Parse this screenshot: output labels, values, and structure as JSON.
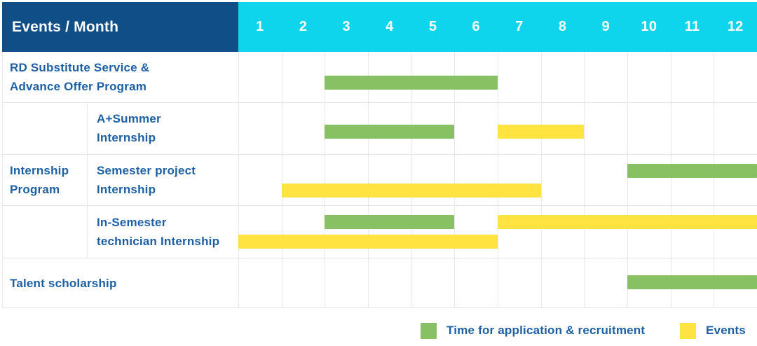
{
  "colors": {
    "corner_bg": "#0F4E87",
    "months_bg": "#0ED4EC",
    "application_green": "#87C163",
    "event_yellow": "#FFE340",
    "label_text": "#1C5FA5",
    "header_text": "#FFFFFF"
  },
  "table": {
    "corner_label": "Events / Month",
    "months": [
      "1",
      "2",
      "3",
      "4",
      "5",
      "6",
      "7",
      "8",
      "9",
      "10",
      "11",
      "12"
    ],
    "group_label_lines": [
      "Internship",
      "Program"
    ],
    "rows": [
      {
        "id": "rd-substitute-service",
        "label_lines": [
          "RD Substitute Service &",
          "Advance Offer Program"
        ],
        "in_group": false,
        "bars": [
          {
            "type": "application",
            "start": 3,
            "end": 6,
            "lane": "single"
          }
        ]
      },
      {
        "id": "a-plus-summer-internship",
        "label_lines": [
          "A+Summer",
          "Internship"
        ],
        "in_group": true,
        "bars": [
          {
            "type": "application",
            "start": 3,
            "end": 5,
            "lane": "single"
          },
          {
            "type": "event",
            "start": 7,
            "end": 8,
            "lane": "single"
          }
        ]
      },
      {
        "id": "semester-project-internship",
        "label_lines": [
          "Semester project",
          "Internship"
        ],
        "in_group": true,
        "bars": [
          {
            "type": "application",
            "start": 10,
            "end": 12,
            "lane": "upper"
          },
          {
            "type": "event",
            "start": 2,
            "end": 7,
            "lane": "lower"
          }
        ]
      },
      {
        "id": "in-semester-technician-internship",
        "label_lines": [
          "In-Semester",
          "technician Internship"
        ],
        "in_group": true,
        "bars": [
          {
            "type": "application",
            "start": 3,
            "end": 5,
            "lane": "upper"
          },
          {
            "type": "event",
            "start": 7,
            "end": 12,
            "lane": "upper"
          },
          {
            "type": "event",
            "start": 1,
            "end": 6,
            "lane": "lower"
          }
        ]
      },
      {
        "id": "talent-scholarship",
        "label_lines": [
          "Talent scholarship"
        ],
        "in_group": false,
        "bars": [
          {
            "type": "application",
            "start": 10,
            "end": 12,
            "lane": "single"
          }
        ]
      }
    ]
  },
  "legend": [
    {
      "type": "application",
      "label": "Time for application & recruitment"
    },
    {
      "type": "event",
      "label": "Events"
    }
  ],
  "chart_data": {
    "type": "bar",
    "subtype": "gantt",
    "title": "Events / Month",
    "x_axis": {
      "label": "Month",
      "ticks": [
        1,
        2,
        3,
        4,
        5,
        6,
        7,
        8,
        9,
        10,
        11,
        12
      ],
      "range": [
        1,
        12
      ]
    },
    "legend_entries": [
      "Time for application & recruitment",
      "Events"
    ],
    "grid": true,
    "tasks": [
      {
        "event": "RD Substitute Service & Advance Offer Program",
        "group": null,
        "application_recruitment_months": [
          [
            3,
            6
          ]
        ],
        "event_months": []
      },
      {
        "event": "A+Summer Internship",
        "group": "Internship Program",
        "application_recruitment_months": [
          [
            3,
            5
          ]
        ],
        "event_months": [
          [
            7,
            8
          ]
        ]
      },
      {
        "event": "Semester project Internship",
        "group": "Internship Program",
        "application_recruitment_months": [
          [
            10,
            12
          ]
        ],
        "event_months": [
          [
            2,
            7
          ]
        ]
      },
      {
        "event": "In-Semester technician Internship",
        "group": "Internship Program",
        "application_recruitment_months": [
          [
            3,
            5
          ]
        ],
        "event_months": [
          [
            1,
            6
          ],
          [
            7,
            12
          ]
        ]
      },
      {
        "event": "Talent scholarship",
        "group": null,
        "application_recruitment_months": [
          [
            10,
            12
          ]
        ],
        "event_months": []
      }
    ]
  }
}
